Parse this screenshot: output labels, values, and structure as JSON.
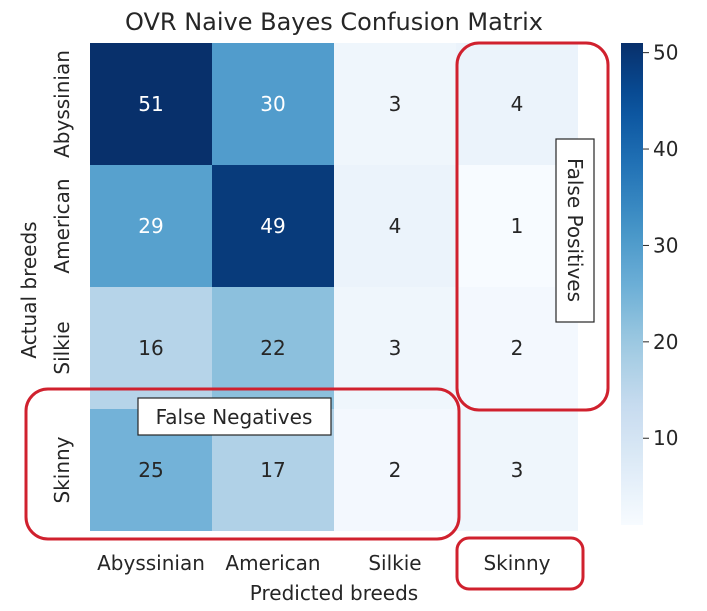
{
  "chart_data": {
    "type": "heatmap",
    "title": "OVR Naive Bayes Confusion Matrix",
    "xlabel": "Predicted breeds",
    "ylabel": "Actual breeds",
    "x_categories": [
      "Abyssinian",
      "American",
      "Silkie",
      "Skinny"
    ],
    "y_categories": [
      "Abyssinian",
      "American",
      "Silkie",
      "Skinny"
    ],
    "values": [
      [
        51,
        30,
        3,
        4
      ],
      [
        29,
        49,
        4,
        1
      ],
      [
        16,
        22,
        3,
        2
      ],
      [
        25,
        17,
        2,
        3
      ]
    ],
    "colorbar": {
      "ticks": [
        10,
        20,
        30,
        40,
        50
      ],
      "vmin": 1,
      "vmax": 51,
      "colormap": "Blues"
    },
    "annotations": {
      "false_negatives": "False Negatives",
      "false_positives": "False Positives"
    },
    "highlight_color": "#d0212e"
  }
}
